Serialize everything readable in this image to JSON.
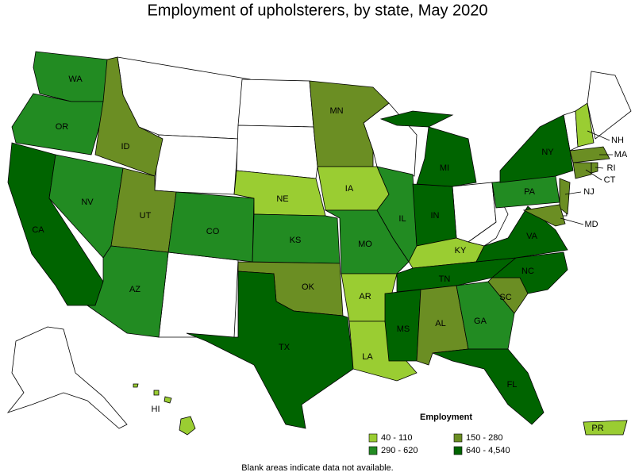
{
  "title": "Employment of upholsterers, by state, May 2020",
  "legend": {
    "title": "Employment",
    "items": [
      {
        "label": "40 - 110",
        "color": "#9acd32"
      },
      {
        "label": "150 - 280",
        "color": "#6b8e23"
      },
      {
        "label": "290 - 620",
        "color": "#228b22"
      },
      {
        "label": "640 - 4,540",
        "color": "#006400"
      }
    ]
  },
  "note": "Blank areas indicate data not available.",
  "states": [
    {
      "label": "WA",
      "color": "#228b22"
    },
    {
      "label": "OR",
      "color": "#228b22"
    },
    {
      "label": "CA",
      "color": "#006400"
    },
    {
      "label": "NV",
      "color": "#228b22"
    },
    {
      "label": "ID",
      "color": "#6b8e23"
    },
    {
      "label": "UT",
      "color": "#6b8e23"
    },
    {
      "label": "AZ",
      "color": "#228b22"
    },
    {
      "label": "CO",
      "color": "#228b22"
    },
    {
      "label": "NE",
      "color": "#9acd32"
    },
    {
      "label": "KS",
      "color": "#228b22"
    },
    {
      "label": "OK",
      "color": "#6b8e23"
    },
    {
      "label": "TX",
      "color": "#006400"
    },
    {
      "label": "MN",
      "color": "#6b8e23"
    },
    {
      "label": "IA",
      "color": "#9acd32"
    },
    {
      "label": "MO",
      "color": "#228b22"
    },
    {
      "label": "AR",
      "color": "#9acd32"
    },
    {
      "label": "LA",
      "color": "#9acd32"
    },
    {
      "label": "IL",
      "color": "#228b22"
    },
    {
      "label": "IN",
      "color": "#006400"
    },
    {
      "label": "MI",
      "color": "#006400"
    },
    {
      "label": "KY",
      "color": "#9acd32"
    },
    {
      "label": "TN",
      "color": "#006400"
    },
    {
      "label": "MS",
      "color": "#006400"
    },
    {
      "label": "AL",
      "color": "#6b8e23"
    },
    {
      "label": "GA",
      "color": "#228b22"
    },
    {
      "label": "FL",
      "color": "#006400"
    },
    {
      "label": "SC",
      "color": "#6b8e23"
    },
    {
      "label": "NC",
      "color": "#006400"
    },
    {
      "label": "VA",
      "color": "#006400"
    },
    {
      "label": "PA",
      "color": "#228b22"
    },
    {
      "label": "NY",
      "color": "#006400"
    },
    {
      "label": "NH",
      "color": "#9acd32"
    },
    {
      "label": "MA",
      "color": "#6b8e23"
    },
    {
      "label": "CT",
      "color": "#6b8e23"
    },
    {
      "label": "RI",
      "color": "#6b8e23"
    },
    {
      "label": "NJ",
      "color": "#6b8e23"
    },
    {
      "label": "MD",
      "color": "#6b8e23"
    },
    {
      "label": "HI",
      "color": "#9acd32"
    },
    {
      "label": "PR",
      "color": "#9acd32"
    }
  ]
}
